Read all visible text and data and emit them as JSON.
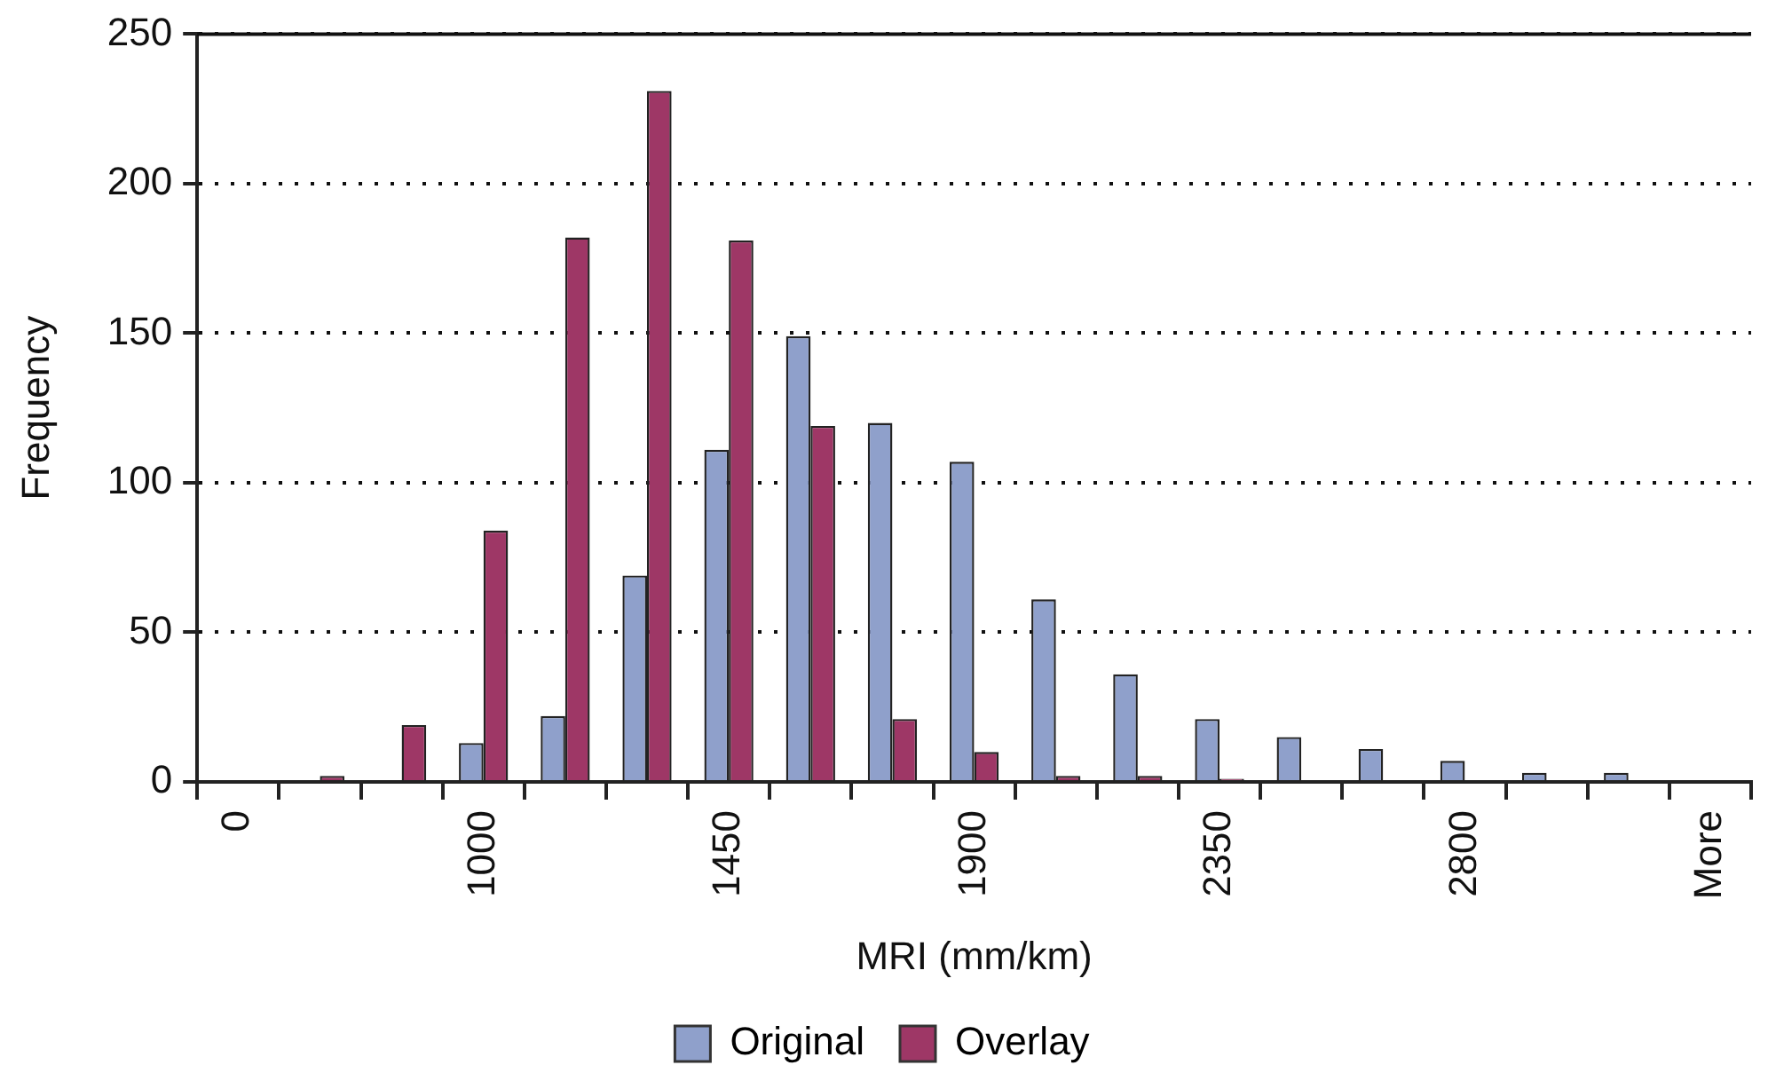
{
  "chart_data": {
    "type": "bar",
    "xlabel": "MRI (mm/km)",
    "ylabel": "Frequency",
    "categories": [
      "0",
      null,
      null,
      "1000",
      null,
      null,
      "1450",
      null,
      null,
      "1900",
      null,
      null,
      "2350",
      null,
      null,
      "2800",
      null,
      null,
      "More"
    ],
    "series": [
      {
        "name": "Original",
        "color": "#8fa0cb",
        "values": [
          0,
          0,
          0,
          13,
          22,
          69,
          111,
          149,
          120,
          107,
          61,
          36,
          21,
          15,
          11,
          7,
          3,
          3,
          0
        ]
      },
      {
        "name": "Overlay",
        "color": "#9e3766",
        "values": [
          0,
          2,
          19,
          84,
          182,
          231,
          181,
          119,
          21,
          10,
          2,
          2,
          1,
          0,
          0,
          0,
          0,
          0,
          0
        ]
      }
    ],
    "ylim": [
      0,
      250
    ],
    "yticks": [
      0,
      50,
      100,
      150,
      200,
      250
    ],
    "grid": "y",
    "legend": "bottom"
  }
}
